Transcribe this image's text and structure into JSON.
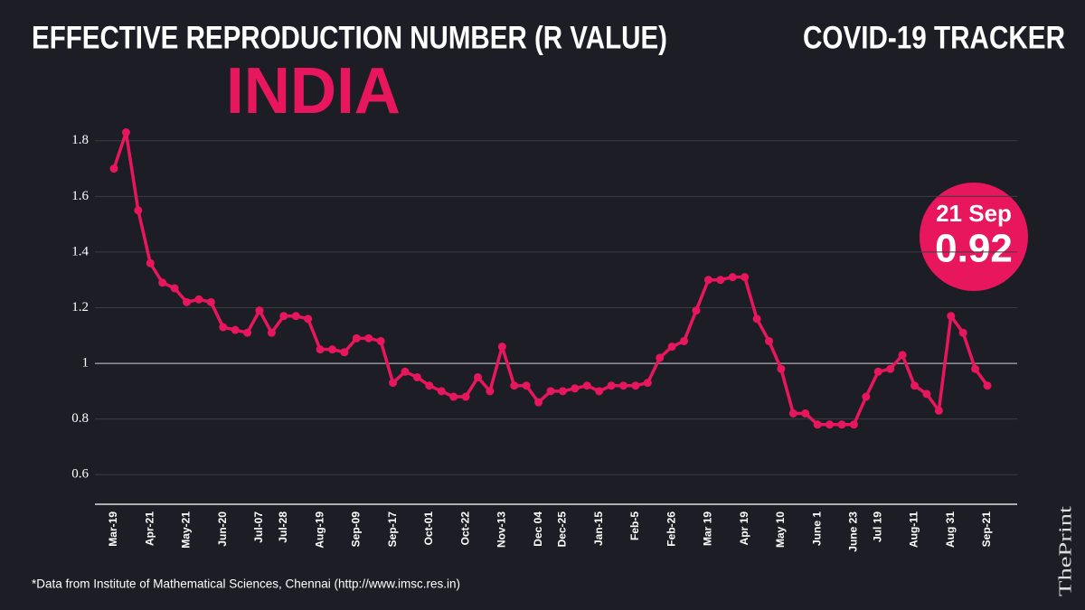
{
  "chart_data": {
    "type": "line",
    "title": "EFFECTIVE REPRODUCTION NUMBER (R VALUE)",
    "subtitle": "INDIA",
    "tracker": "COVID-19 TRACKER",
    "source": "*Data from Institute of Mathematical Sciences, Chennai (http://www.imsc.res.in)",
    "brand": "ThePrint",
    "annotation": "21 Sep",
    "color": "#e8175d",
    "grid": true,
    "ylim": [
      0.5,
      1.9
    ],
    "yticks": [
      0.6,
      0.8,
      1,
      1.2,
      1.4,
      1.6,
      1.8
    ],
    "categories": [
      "Mar-19",
      null,
      null,
      "Apr-21",
      null,
      null,
      "May-21",
      null,
      null,
      "Jun-20",
      null,
      null,
      "Jul-07",
      null,
      "Jul-28",
      null,
      null,
      "Aug-19",
      null,
      null,
      "Sep-09",
      null,
      null,
      "Sep-17",
      null,
      null,
      "Oct-01",
      null,
      null,
      "Oct-22",
      null,
      null,
      "Nov-13",
      null,
      null,
      "Dec 04",
      null,
      "Dec-25",
      null,
      null,
      "Jan-15",
      null,
      null,
      "Feb-5",
      null,
      null,
      "Feb-26",
      null,
      null,
      "Mar 19",
      null,
      null,
      "Apr 19",
      null,
      null,
      "May 10",
      null,
      null,
      "June 1",
      null,
      null,
      "June 23",
      null,
      "Jul 19",
      null,
      null,
      "Aug-11",
      null,
      null,
      "Aug 31",
      null,
      null,
      "Sep-21"
    ],
    "values": [
      1.7,
      1.83,
      1.55,
      1.36,
      1.29,
      1.27,
      1.22,
      1.23,
      1.22,
      1.13,
      1.12,
      1.11,
      1.19,
      1.11,
      1.17,
      1.17,
      1.16,
      1.05,
      1.05,
      1.04,
      1.09,
      1.09,
      1.08,
      0.93,
      0.97,
      0.95,
      0.92,
      0.9,
      0.88,
      0.88,
      0.95,
      0.9,
      1.06,
      0.92,
      0.92,
      0.86,
      0.9,
      0.9,
      0.91,
      0.92,
      0.9,
      0.92,
      0.92,
      0.92,
      0.93,
      1.02,
      1.06,
      1.08,
      1.19,
      1.3,
      1.3,
      1.31,
      1.31,
      1.16,
      1.08,
      0.98,
      0.82,
      0.82,
      0.78,
      0.78,
      0.78,
      0.78,
      0.88,
      0.97,
      0.98,
      1.03,
      0.92,
      0.89,
      0.83,
      1.17,
      1.11,
      0.98,
      0.92
    ]
  }
}
